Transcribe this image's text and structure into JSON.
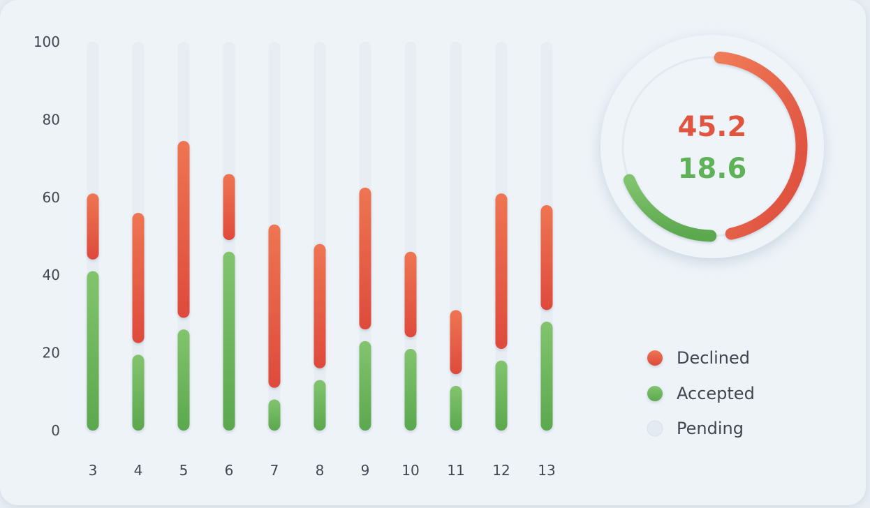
{
  "chart_data": {
    "type": "bar",
    "subtype": "floating-stacked-range",
    "categories": [
      "3",
      "4",
      "5",
      "6",
      "7",
      "8",
      "9",
      "10",
      "11",
      "12",
      "13"
    ],
    "ylim": [
      0,
      100
    ],
    "yticks": [
      "0",
      "20",
      "40",
      "60",
      "80",
      "100"
    ],
    "series": [
      {
        "name": "Accepted",
        "color": "#6ab85c",
        "values": [
          41,
          19.5,
          26,
          46,
          8,
          13,
          23,
          21,
          11.5,
          18,
          28
        ]
      },
      {
        "name": "Declined",
        "color": "#e55a45",
        "range": [
          [
            44,
            61
          ],
          [
            22.5,
            56
          ],
          [
            29,
            74.5
          ],
          [
            49,
            66
          ],
          [
            11,
            53
          ],
          [
            16,
            48
          ],
          [
            26,
            62.5
          ],
          [
            24,
            46
          ],
          [
            14.5,
            31
          ],
          [
            21,
            61
          ],
          [
            31,
            58
          ]
        ]
      },
      {
        "name": "Pending",
        "color": "#dfe6ee",
        "range_to": 100
      }
    ],
    "legend_position": "bottom-right",
    "donut": {
      "declined_value": "45.2",
      "accepted_value": "18.6",
      "declined_fraction": 0.452,
      "accepted_fraction": 0.186
    }
  }
}
